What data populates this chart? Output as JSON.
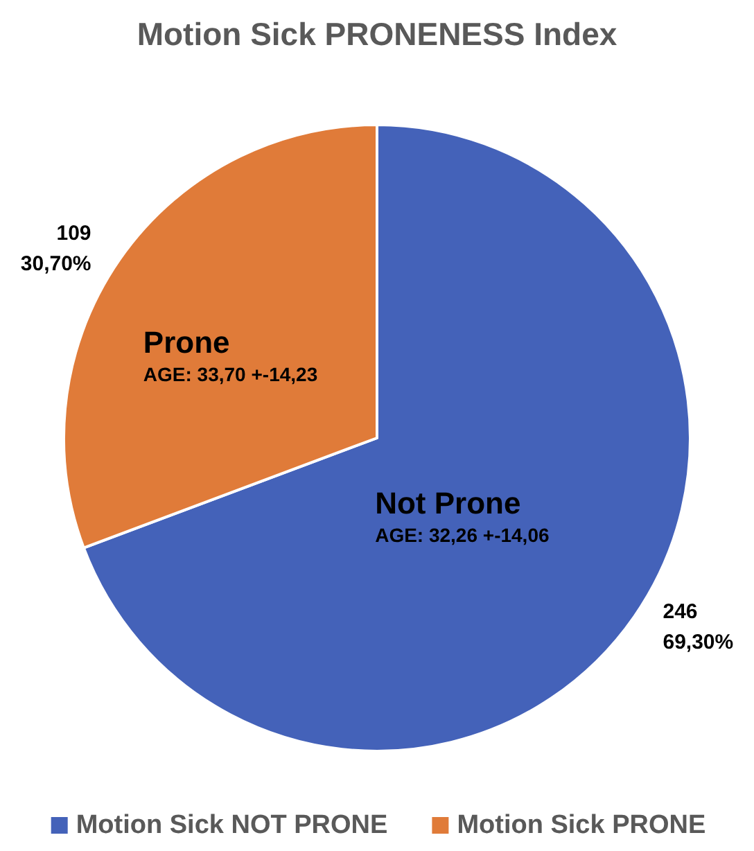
{
  "chart_data": {
    "type": "pie",
    "title": "Motion Sick PRONENESS Index",
    "categories": [
      "Motion Sick NOT PRONE",
      "Motion Sick PRONE"
    ],
    "values": [
      246,
      109
    ],
    "colors": [
      "#4462b9",
      "#e07b39"
    ],
    "value_labels": [
      "246\n69,30%",
      "109\n30,70%"
    ],
    "annotations": [
      "Not Prone\nAGE: 32,26 +-14,06",
      "Prone\nAGE: 33,70 +-14,23"
    ],
    "legend": "bottom"
  }
}
